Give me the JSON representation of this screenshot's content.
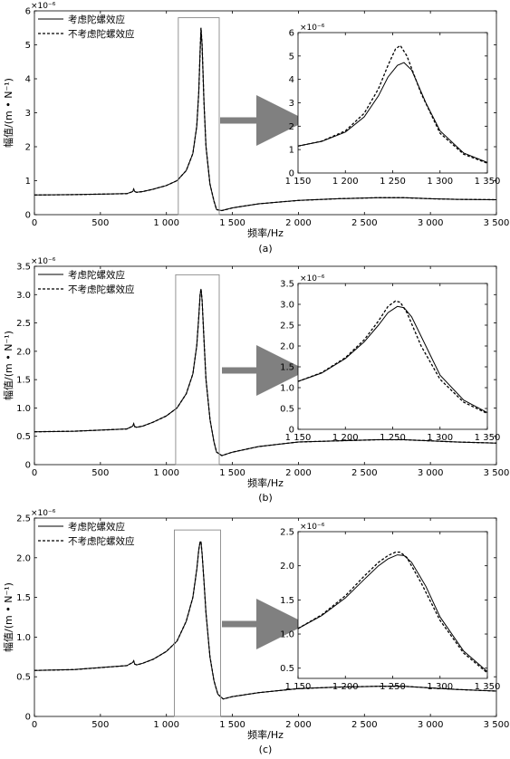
{
  "figure": {
    "panels": [
      {
        "caption": "(a)"
      },
      {
        "caption": "(b)"
      },
      {
        "caption": "(c)"
      }
    ]
  },
  "chart_data": [
    {
      "type": "line",
      "panel": "a",
      "caption": "(a)",
      "xlabel": "频率/Hz",
      "ylabel": "幅值/(m • N⁻¹)",
      "y_multiplier": "×10⁻⁶",
      "xlim": [
        0,
        3500
      ],
      "ylim": [
        0,
        6
      ],
      "xticks": [
        0,
        500,
        1000,
        1500,
        2000,
        2500,
        3000,
        3500
      ],
      "xtick_labels": [
        "0",
        "500",
        "1 000",
        "1 500",
        "2 000",
        "2 500",
        "3 000",
        "3 500"
      ],
      "yticks": [
        0,
        1,
        2,
        3,
        4,
        5,
        6
      ],
      "ytick_labels": [
        "0",
        "1",
        "2",
        "3",
        "4",
        "5",
        "6"
      ],
      "legend": {
        "placement": "top-left",
        "entries": [
          "考虑陀螺效应",
          "不考虑陀螺效应"
        ]
      },
      "series": [
        {
          "name": "考虑陀螺效应",
          "style": "solid",
          "x": [
            0,
            300,
            700,
            745,
            752,
            760,
            775,
            820,
            900,
            1000,
            1080,
            1150,
            1200,
            1230,
            1245,
            1255,
            1262,
            1270,
            1285,
            1300,
            1330,
            1360,
            1380,
            1420,
            1500,
            1700,
            2000,
            2300,
            2600,
            2800,
            3000,
            3200,
            3500
          ],
          "y": [
            0.58,
            0.59,
            0.62,
            0.68,
            0.75,
            0.68,
            0.66,
            0.68,
            0.75,
            0.86,
            1.0,
            1.3,
            1.8,
            2.6,
            3.6,
            4.8,
            5.5,
            5.0,
            3.3,
            2.0,
            0.9,
            0.4,
            0.15,
            0.12,
            0.2,
            0.32,
            0.42,
            0.47,
            0.5,
            0.5,
            0.47,
            0.45,
            0.44
          ]
        },
        {
          "name": "不考虑陀螺效应",
          "style": "dashed",
          "x": [
            0,
            300,
            700,
            745,
            752,
            760,
            775,
            820,
            900,
            1000,
            1080,
            1150,
            1200,
            1230,
            1245,
            1255,
            1262,
            1270,
            1285,
            1300,
            1330,
            1360,
            1380,
            1420,
            1500,
            1700,
            2000,
            2300,
            2600,
            2800,
            3000,
            3200,
            3500
          ],
          "y": [
            0.58,
            0.59,
            0.62,
            0.68,
            0.75,
            0.68,
            0.66,
            0.68,
            0.75,
            0.86,
            1.0,
            1.3,
            1.8,
            2.6,
            3.6,
            4.8,
            5.5,
            5.0,
            3.3,
            2.0,
            0.9,
            0.4,
            0.15,
            0.12,
            0.2,
            0.32,
            0.42,
            0.47,
            0.5,
            0.5,
            0.47,
            0.45,
            0.44
          ]
        }
      ],
      "zoom_box": {
        "x": [
          1090,
          1400
        ],
        "y": [
          0,
          5.8
        ]
      },
      "inset": {
        "xlim": [
          1150,
          1350
        ],
        "ylim": [
          0,
          6
        ],
        "xticks": [
          1150,
          1200,
          1250,
          1300,
          1350
        ],
        "xtick_labels": [
          "1 150",
          "1 200",
          "1 250",
          "1 300",
          "1 350"
        ],
        "yticks": [
          0,
          1,
          2,
          3,
          4,
          5,
          6
        ],
        "ytick_labels": [
          "0",
          "1",
          "2",
          "3",
          "4",
          "5",
          "6"
        ],
        "y_multiplier": "×10⁻⁶",
        "series": [
          {
            "name": "考虑陀螺效应",
            "style": "solid",
            "x": [
              1150,
              1175,
              1200,
              1220,
              1235,
              1245,
              1255,
              1262,
              1270,
              1285,
              1300,
              1325,
              1350
            ],
            "y": [
              1.15,
              1.35,
              1.75,
              2.4,
              3.3,
              4.1,
              4.6,
              4.72,
              4.4,
              3.0,
              1.8,
              0.85,
              0.45
            ]
          },
          {
            "name": "不考虑陀螺效应",
            "style": "dashed",
            "x": [
              1150,
              1175,
              1200,
              1220,
              1235,
              1245,
              1253,
              1258,
              1265,
              1280,
              1300,
              1325,
              1350
            ],
            "y": [
              1.15,
              1.36,
              1.8,
              2.55,
              3.6,
              4.6,
              5.3,
              5.45,
              5.0,
              3.4,
              1.7,
              0.8,
              0.42
            ]
          }
        ]
      }
    },
    {
      "type": "line",
      "panel": "b",
      "caption": "(b)",
      "xlabel": "频率/Hz",
      "ylabel": "幅值/(m • N⁻¹)",
      "y_multiplier": "×10⁻⁶",
      "xlim": [
        0,
        3500
      ],
      "ylim": [
        0,
        3.5
      ],
      "xticks": [
        0,
        500,
        1000,
        1500,
        2000,
        2500,
        3000,
        3500
      ],
      "xtick_labels": [
        "0",
        "500",
        "1 000",
        "1 500",
        "2 000",
        "2 500",
        "3 000",
        "3 500"
      ],
      "yticks": [
        0,
        0.5,
        1.0,
        1.5,
        2.0,
        2.5,
        3.0,
        3.5
      ],
      "ytick_labels": [
        "0",
        "0.5",
        "1.0",
        "1.5",
        "2.0",
        "2.5",
        "3.0",
        "3.5"
      ],
      "legend": {
        "placement": "top-left",
        "entries": [
          "考虑陀螺效应",
          "不考虑陀螺效应"
        ]
      },
      "series": [
        {
          "name": "考虑陀螺效应",
          "style": "solid",
          "x": [
            0,
            300,
            700,
            745,
            752,
            760,
            775,
            820,
            900,
            1000,
            1080,
            1150,
            1200,
            1230,
            1245,
            1255,
            1262,
            1270,
            1285,
            1300,
            1330,
            1360,
            1380,
            1420,
            1500,
            1700,
            2000,
            2300,
            2600,
            2800,
            3000,
            3200,
            3500
          ],
          "y": [
            0.58,
            0.59,
            0.63,
            0.68,
            0.72,
            0.67,
            0.66,
            0.68,
            0.75,
            0.86,
            1.0,
            1.25,
            1.6,
            2.1,
            2.6,
            3.0,
            3.1,
            2.9,
            2.2,
            1.5,
            0.8,
            0.4,
            0.22,
            0.16,
            0.22,
            0.32,
            0.4,
            0.42,
            0.44,
            0.44,
            0.42,
            0.4,
            0.38
          ]
        },
        {
          "name": "不考虑陀螺效应",
          "style": "dashed",
          "x": [
            0,
            300,
            700,
            745,
            752,
            760,
            775,
            820,
            900,
            1000,
            1080,
            1150,
            1200,
            1230,
            1245,
            1255,
            1262,
            1270,
            1285,
            1300,
            1330,
            1360,
            1380,
            1420,
            1500,
            1700,
            2000,
            2300,
            2600,
            2800,
            3000,
            3200,
            3500
          ],
          "y": [
            0.58,
            0.59,
            0.63,
            0.68,
            0.72,
            0.67,
            0.66,
            0.68,
            0.75,
            0.86,
            1.0,
            1.25,
            1.6,
            2.1,
            2.6,
            3.0,
            3.1,
            2.9,
            2.2,
            1.5,
            0.8,
            0.4,
            0.22,
            0.16,
            0.22,
            0.32,
            0.4,
            0.42,
            0.44,
            0.44,
            0.42,
            0.4,
            0.38
          ]
        }
      ],
      "zoom_box": {
        "x": [
          1070,
          1400
        ],
        "y": [
          0,
          3.35
        ]
      },
      "inset": {
        "xlim": [
          1150,
          1350
        ],
        "ylim": [
          0,
          3.5
        ],
        "xticks": [
          1150,
          1200,
          1250,
          1300,
          1350
        ],
        "xtick_labels": [
          "1 150",
          "1 200",
          "1 250",
          "1 300",
          "1 350"
        ],
        "yticks": [
          0,
          0.5,
          1.0,
          1.5,
          2.0,
          2.5,
          3.0,
          3.5
        ],
        "ytick_labels": [
          "0",
          "0.5",
          "1.0",
          "1.5",
          "2.0",
          "2.5",
          "3.0",
          "3.5"
        ],
        "y_multiplier": "×10⁻⁶",
        "series": [
          {
            "name": "考虑陀螺效应",
            "style": "solid",
            "x": [
              1150,
              1175,
              1200,
              1220,
              1235,
              1245,
              1255,
              1262,
              1270,
              1285,
              1300,
              1325,
              1350
            ],
            "y": [
              1.15,
              1.35,
              1.7,
              2.1,
              2.5,
              2.8,
              2.95,
              2.92,
              2.7,
              2.0,
              1.3,
              0.7,
              0.4
            ]
          },
          {
            "name": "不考虑陀螺效应",
            "style": "dashed",
            "x": [
              1150,
              1175,
              1200,
              1220,
              1235,
              1245,
              1253,
              1258,
              1265,
              1280,
              1300,
              1325,
              1350
            ],
            "y": [
              1.15,
              1.36,
              1.72,
              2.15,
              2.6,
              2.95,
              3.08,
              3.05,
              2.8,
              2.0,
              1.2,
              0.65,
              0.38
            ]
          }
        ]
      }
    },
    {
      "type": "line",
      "panel": "c",
      "caption": "(c)",
      "xlabel": "频率/Hz",
      "ylabel": "幅值/(m • N⁻¹)",
      "y_multiplier": "×10⁻⁶",
      "xlim": [
        0,
        3500
      ],
      "ylim": [
        0,
        2.5
      ],
      "xticks": [
        0,
        500,
        1000,
        1500,
        2000,
        2500,
        3000,
        3500
      ],
      "xtick_labels": [
        "0",
        "500",
        "1 000",
        "1 500",
        "2 000",
        "2 500",
        "3 000",
        "3 500"
      ],
      "yticks": [
        0,
        0.5,
        1.0,
        1.5,
        2.0,
        2.5
      ],
      "ytick_labels": [
        "0",
        "0.5",
        "1.0",
        "1.5",
        "2.0",
        "2.5"
      ],
      "legend": {
        "placement": "top-left",
        "entries": [
          "考虑陀螺效应",
          "不考虑陀螺效应"
        ]
      },
      "series": [
        {
          "name": "考虑陀螺效应",
          "style": "solid",
          "x": [
            0,
            300,
            700,
            745,
            752,
            760,
            775,
            820,
            900,
            1000,
            1080,
            1150,
            1200,
            1230,
            1245,
            1255,
            1262,
            1270,
            1285,
            1300,
            1330,
            1360,
            1390,
            1430,
            1500,
            1700,
            2000,
            2300,
            2600,
            2800,
            3000,
            3200,
            3500
          ],
          "y": [
            0.58,
            0.59,
            0.64,
            0.68,
            0.7,
            0.66,
            0.65,
            0.67,
            0.72,
            0.82,
            0.95,
            1.2,
            1.5,
            1.85,
            2.1,
            2.2,
            2.2,
            2.05,
            1.7,
            1.3,
            0.75,
            0.45,
            0.28,
            0.22,
            0.25,
            0.3,
            0.35,
            0.37,
            0.38,
            0.38,
            0.36,
            0.34,
            0.32
          ]
        },
        {
          "name": "不考虑陀螺效应",
          "style": "dashed",
          "x": [
            0,
            300,
            700,
            745,
            752,
            760,
            775,
            820,
            900,
            1000,
            1080,
            1150,
            1200,
            1230,
            1245,
            1255,
            1262,
            1270,
            1285,
            1300,
            1330,
            1360,
            1390,
            1430,
            1500,
            1700,
            2000,
            2300,
            2600,
            2800,
            3000,
            3200,
            3500
          ],
          "y": [
            0.58,
            0.59,
            0.64,
            0.68,
            0.7,
            0.66,
            0.65,
            0.67,
            0.72,
            0.82,
            0.95,
            1.2,
            1.5,
            1.85,
            2.1,
            2.2,
            2.2,
            2.05,
            1.7,
            1.3,
            0.75,
            0.45,
            0.28,
            0.22,
            0.25,
            0.3,
            0.35,
            0.37,
            0.38,
            0.38,
            0.36,
            0.34,
            0.32
          ]
        }
      ],
      "zoom_box": {
        "x": [
          1060,
          1410
        ],
        "y": [
          0,
          2.35
        ]
      },
      "inset": {
        "xlim": [
          1150,
          1350
        ],
        "ylim": [
          0,
          2.5
        ],
        "xticks": [
          1150,
          1200,
          1250,
          1300,
          1350
        ],
        "xtick_labels": [
          "1 150",
          "1 200",
          "1 250",
          "1 300",
          "1 350"
        ],
        "yticks": [
          0.5,
          1.0,
          1.5,
          2.0,
          2.5
        ],
        "ytick_labels": [
          "0.5",
          "1.0",
          "1.5",
          "2.0",
          "2.5"
        ],
        "inset_ylim_bottom": 0.35,
        "y_multiplier": "×10⁻⁶",
        "series": [
          {
            "name": "考虑陀螺效应",
            "style": "solid",
            "x": [
              1150,
              1175,
              1200,
              1220,
              1235,
              1245,
              1255,
              1262,
              1270,
              1285,
              1300,
              1325,
              1350
            ],
            "y": [
              1.08,
              1.27,
              1.53,
              1.8,
              2.0,
              2.1,
              2.16,
              2.15,
              2.05,
              1.7,
              1.25,
              0.75,
              0.45
            ]
          },
          {
            "name": "不考虑陀螺效应",
            "style": "dashed",
            "x": [
              1150,
              1175,
              1200,
              1220,
              1235,
              1245,
              1253,
              1258,
              1265,
              1280,
              1300,
              1325,
              1350
            ],
            "y": [
              1.08,
              1.28,
              1.56,
              1.85,
              2.05,
              2.15,
              2.2,
              2.2,
              2.12,
              1.75,
              1.2,
              0.72,
              0.43
            ]
          }
        ]
      }
    }
  ]
}
